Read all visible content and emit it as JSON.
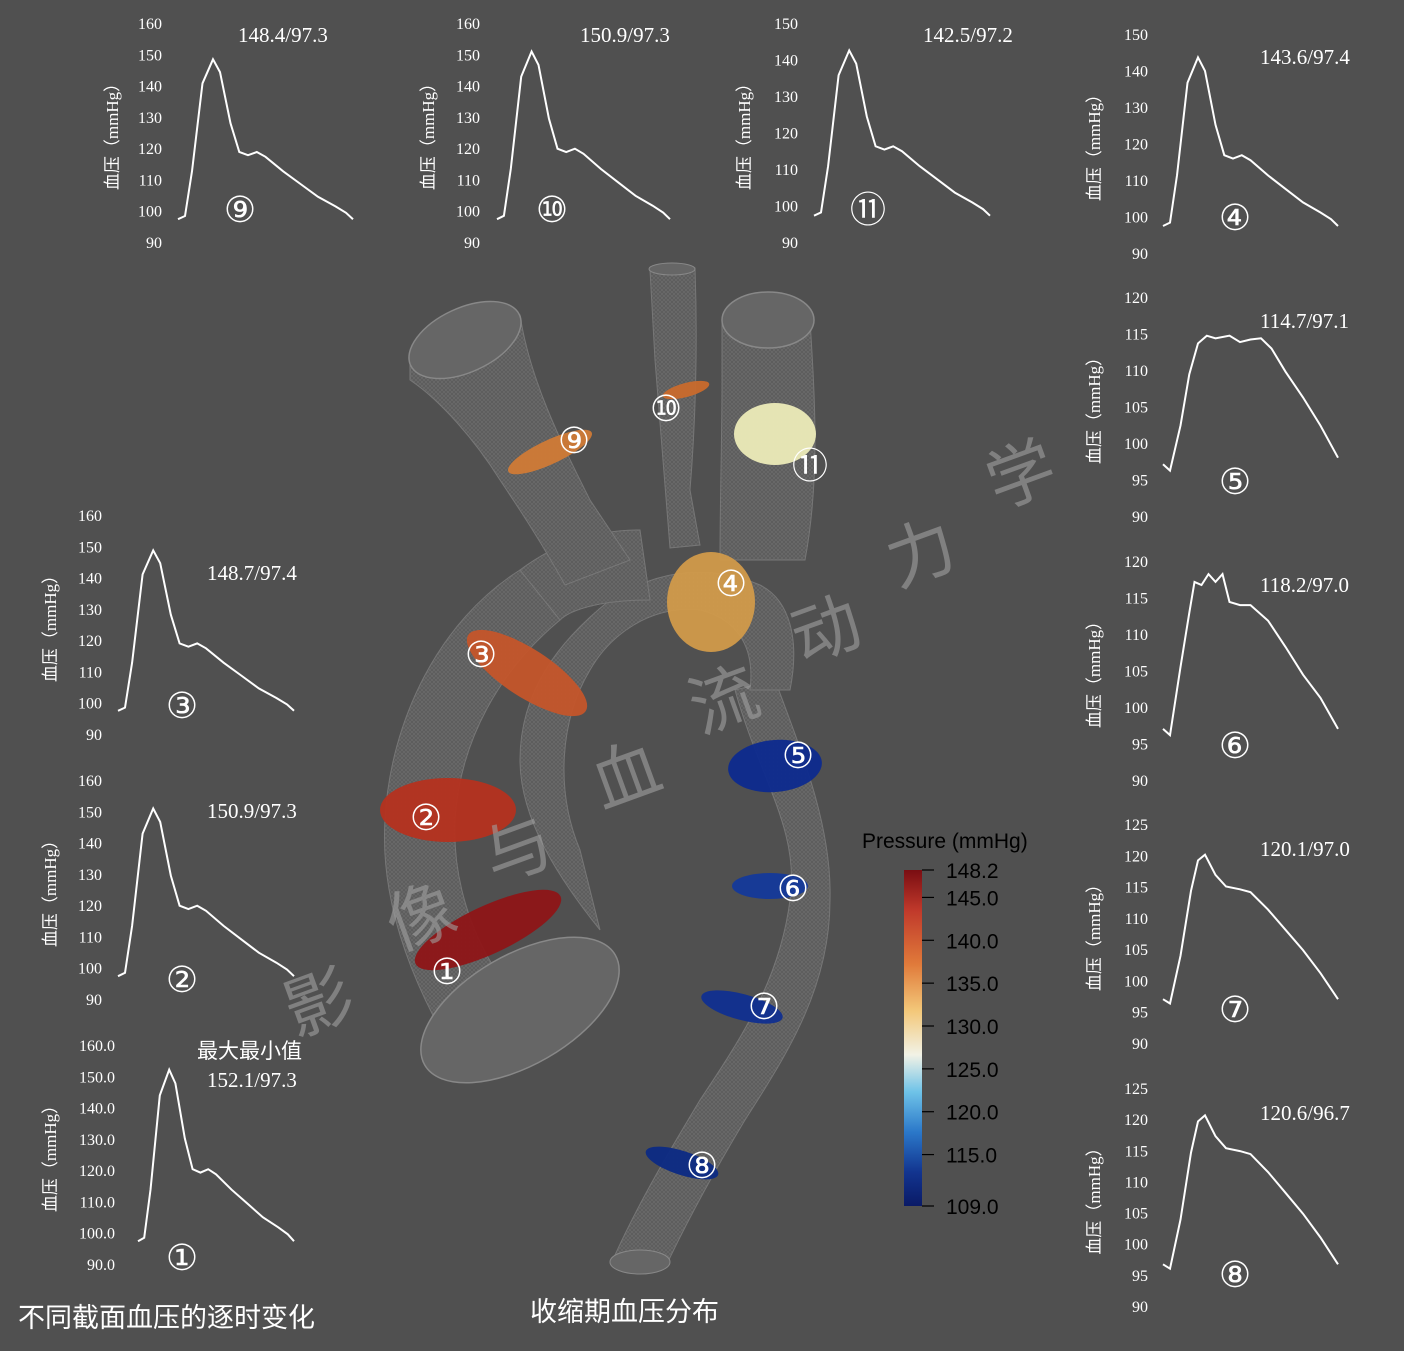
{
  "captions": {
    "left": "不同截面血压的逐时变化",
    "center": "收缩期血压分布",
    "minmax_label": "最大最小值"
  },
  "watermark": [
    "影",
    "像",
    "与",
    "血",
    "流",
    "动",
    "力",
    "学"
  ],
  "colorbar": {
    "title": "Pressure (mmHg)",
    "min": 109.0,
    "max": 148.2,
    "ticks": [
      "148.2",
      "145.0",
      "140.0",
      "135.0",
      "130.0",
      "125.0",
      "120.0",
      "115.0",
      "109.0"
    ],
    "colors": [
      "#7a0d12",
      "#c0392b",
      "#e07a3a",
      "#f3c87a",
      "#f2f2e6",
      "#6fc3e8",
      "#2b78c9",
      "#12348f",
      "#0a1a66"
    ]
  },
  "chart_data": [
    {
      "type": "line",
      "id": "9",
      "marker": "⑨",
      "ylabel": "血压（mmHg）",
      "yticks": [
        "160",
        "150",
        "140",
        "130",
        "120",
        "110",
        "100",
        "90"
      ],
      "ylim": [
        90,
        160
      ],
      "annotation": "148.4/97.3",
      "max": 148.4,
      "min": 97.3,
      "color": "#ffffff"
    },
    {
      "type": "line",
      "id": "10",
      "marker": "⑩",
      "ylabel": "血压（mmHg）",
      "yticks": [
        "160",
        "150",
        "140",
        "130",
        "120",
        "110",
        "100",
        "90"
      ],
      "ylim": [
        90,
        160
      ],
      "annotation": "150.9/97.3",
      "max": 150.9,
      "min": 97.3,
      "color": "#ffffff"
    },
    {
      "type": "line",
      "id": "11",
      "marker": "⑪",
      "ylabel": "血压（mmHg）",
      "yticks": [
        "150",
        "140",
        "130",
        "120",
        "110",
        "100",
        "90"
      ],
      "ylim": [
        90,
        150
      ],
      "annotation": "142.5/97.2",
      "max": 142.5,
      "min": 97.2,
      "color": "#ffffff"
    },
    {
      "type": "line",
      "id": "4",
      "marker": "④",
      "ylabel": "血压（mmHg）",
      "yticks": [
        "150",
        "140",
        "130",
        "120",
        "110",
        "100",
        "90"
      ],
      "ylim": [
        90,
        150
      ],
      "annotation": "143.6/97.4",
      "max": 143.6,
      "min": 97.4,
      "color": "#ffffff"
    },
    {
      "type": "line",
      "id": "5",
      "marker": "⑤",
      "ylabel": "血压（mmHg）",
      "yticks": [
        "120",
        "115",
        "110",
        "105",
        "100",
        "95",
        "90"
      ],
      "ylim": [
        90,
        120
      ],
      "annotation": "114.7/97.1",
      "max": 114.7,
      "min": 97.1,
      "color": "#ffffff"
    },
    {
      "type": "line",
      "id": "6",
      "marker": "⑥",
      "ylabel": "血压（mmHg）",
      "yticks": [
        "120",
        "115",
        "110",
        "105",
        "100",
        "95",
        "90"
      ],
      "ylim": [
        90,
        120
      ],
      "annotation": "118.2/97.0",
      "max": 118.2,
      "min": 97.0,
      "color": "#ffffff"
    },
    {
      "type": "line",
      "id": "7",
      "marker": "⑦",
      "ylabel": "血压（mmHg）",
      "yticks": [
        "125",
        "120",
        "115",
        "110",
        "105",
        "100",
        "95",
        "90"
      ],
      "ylim": [
        90,
        125
      ],
      "annotation": "120.1/97.0",
      "max": 120.1,
      "min": 97.0,
      "color": "#ffffff"
    },
    {
      "type": "line",
      "id": "8",
      "marker": "⑧",
      "ylabel": "血压（mmHg）",
      "yticks": [
        "125",
        "120",
        "115",
        "110",
        "105",
        "100",
        "95",
        "90"
      ],
      "ylim": [
        90,
        125
      ],
      "annotation": "120.6/96.7",
      "max": 120.6,
      "min": 96.7,
      "color": "#ffffff"
    },
    {
      "type": "line",
      "id": "3",
      "marker": "③",
      "ylabel": "血压（mmHg）",
      "yticks": [
        "160",
        "150",
        "140",
        "130",
        "120",
        "110",
        "100",
        "90"
      ],
      "ylim": [
        90,
        160
      ],
      "annotation": "148.7/97.4",
      "max": 148.7,
      "min": 97.4,
      "color": "#ffffff"
    },
    {
      "type": "line",
      "id": "2",
      "marker": "②",
      "ylabel": "血压（mmHg）",
      "yticks": [
        "160",
        "150",
        "140",
        "130",
        "120",
        "110",
        "100",
        "90"
      ],
      "ylim": [
        90,
        160
      ],
      "annotation": "150.9/97.3",
      "max": 150.9,
      "min": 97.3,
      "color": "#ffffff"
    },
    {
      "type": "line",
      "id": "1",
      "marker": "①",
      "ylabel": "血压（mmHg）",
      "yticks": [
        "160.0",
        "150.0",
        "140.0",
        "130.0",
        "120.0",
        "110.0",
        "100.0",
        "90.0"
      ],
      "ylim": [
        90,
        160
      ],
      "annotation": "152.1/97.3",
      "max": 152.1,
      "min": 97.3,
      "color": "#ffffff"
    }
  ],
  "sections": [
    {
      "label": "①",
      "pressure": 148.2,
      "color": "#8e1517"
    },
    {
      "label": "②",
      "pressure": 146.0,
      "color": "#b5321f"
    },
    {
      "label": "③",
      "pressure": 141.0,
      "color": "#c4552a"
    },
    {
      "label": "④",
      "pressure": 137.0,
      "color": "#d19a4a"
    },
    {
      "label": "⑤",
      "pressure": 110.0,
      "color": "#0d2a8e"
    },
    {
      "label": "⑥",
      "pressure": 111.0,
      "color": "#14399a"
    },
    {
      "label": "⑦",
      "pressure": 110.5,
      "color": "#102f90"
    },
    {
      "label": "⑧",
      "pressure": 110.0,
      "color": "#0c2a84"
    },
    {
      "label": "⑨",
      "pressure": 140.0,
      "color": "#d07a36"
    },
    {
      "label": "⑩",
      "pressure": 139.0,
      "color": "#c96a2c"
    },
    {
      "label": "⑪",
      "pressure": 128.0,
      "color": "#ecebb8"
    }
  ]
}
